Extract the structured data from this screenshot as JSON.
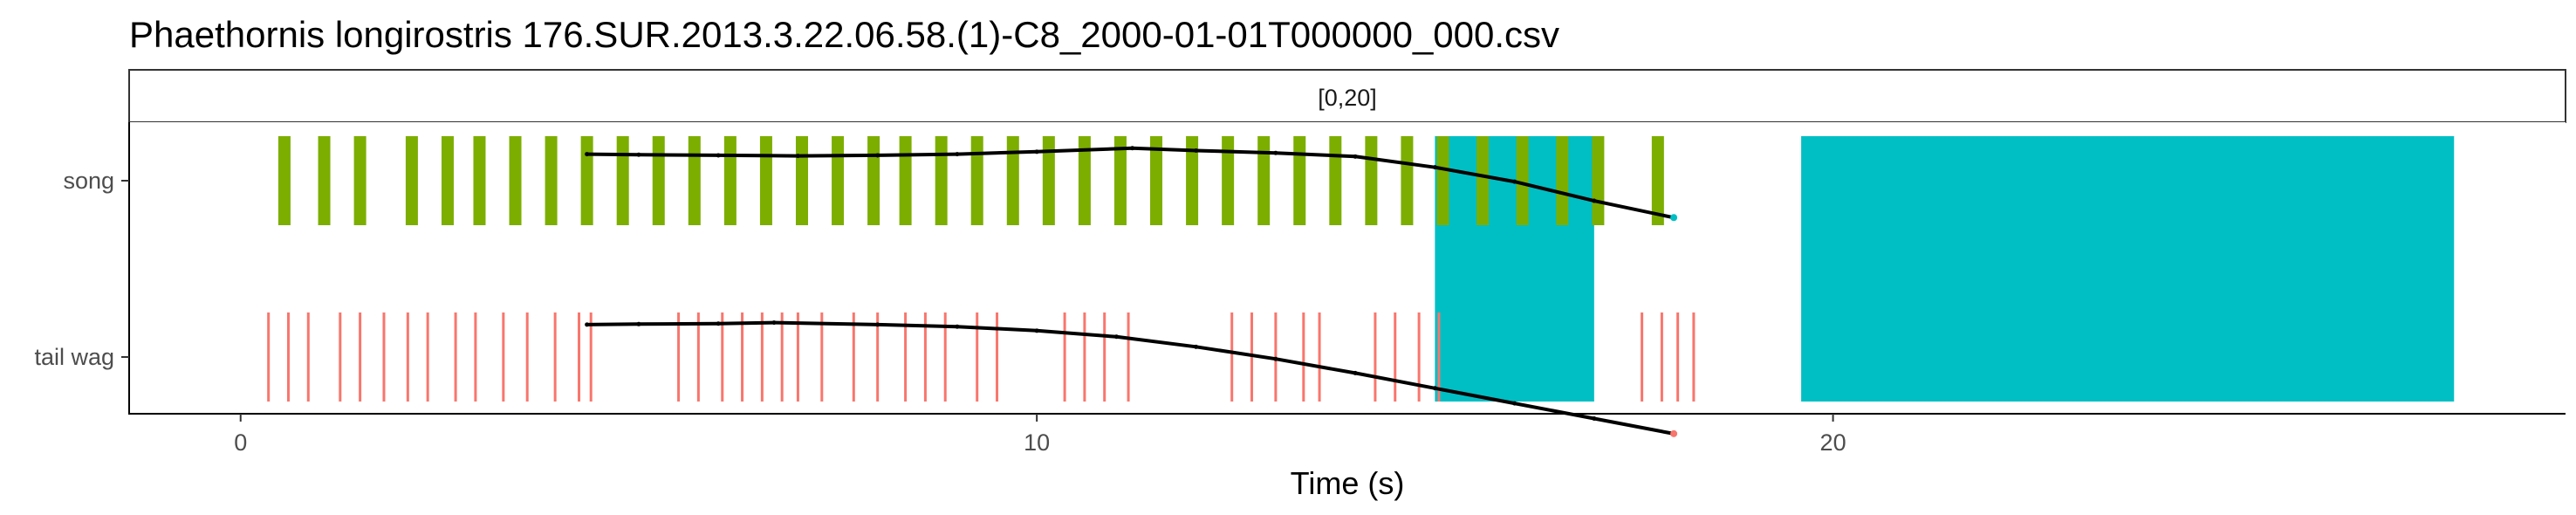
{
  "chart_data": {
    "type": "timeline",
    "title": "Phaethornis longirostris   176.SUR.2013.3.22.06.58.(1)-C8_2000-01-01T000000_000.csv",
    "facet_label": "[0,20]",
    "xlabel": "Time (s)",
    "ylabel": "",
    "xlim": [
      -1.4,
      29.2
    ],
    "x_ticks": [
      0,
      10,
      20
    ],
    "x_tick_labels": [
      "0",
      "10",
      "20"
    ],
    "rows": [
      "song",
      "tail wag"
    ],
    "grid": false,
    "colors": {
      "song": "#7CAE00",
      "tail_wag": "#F8766D",
      "highlight": "#00BFC4",
      "line": "#000000"
    },
    "highlights": [
      {
        "start": 15.0,
        "end": 17.0
      },
      {
        "start": 19.6,
        "end": 27.8
      }
    ],
    "song_events": [
      0.55,
      1.05,
      1.5,
      2.15,
      2.6,
      3.0,
      3.45,
      3.9,
      4.35,
      4.8,
      5.25,
      5.7,
      6.15,
      6.6,
      7.05,
      7.5,
      7.95,
      8.35,
      8.8,
      9.25,
      9.7,
      10.15,
      10.6,
      11.05,
      11.5,
      11.95,
      12.4,
      12.85,
      13.3,
      13.75,
      14.2,
      14.65,
      15.1,
      15.6,
      16.1,
      16.6,
      17.05,
      17.8
    ],
    "tail_wag_events": [
      0.35,
      0.6,
      0.85,
      1.25,
      1.5,
      1.8,
      2.1,
      2.35,
      2.7,
      2.95,
      3.3,
      3.6,
      3.95,
      4.25,
      4.4,
      5.5,
      5.75,
      6.05,
      6.3,
      6.55,
      6.8,
      7.0,
      7.3,
      7.7,
      8.0,
      8.35,
      8.6,
      8.85,
      9.25,
      9.5,
      10.35,
      10.6,
      10.85,
      11.15,
      12.45,
      12.7,
      13.0,
      13.35,
      13.55,
      14.25,
      14.5,
      14.8,
      15.05,
      17.6,
      17.85,
      18.05,
      18.25
    ],
    "song_line": {
      "x": [
        4.35,
        5.0,
        6.0,
        7.0,
        8.0,
        9.0,
        10.0,
        11.2,
        12.0,
        13.0,
        14.0,
        15.0,
        16.0,
        17.0,
        18.0
      ],
      "y": [
        0.5,
        0.45,
        0.4,
        0.35,
        0.4,
        0.5,
        0.7,
        1.0,
        0.8,
        0.6,
        0.3,
        -0.6,
        -1.8,
        -3.4,
        -4.8
      ]
    },
    "tail_line": {
      "x": [
        4.35,
        5.0,
        6.0,
        6.7,
        8.0,
        9.0,
        10.0,
        11.0,
        12.0,
        13.0,
        14.0,
        15.0,
        16.0,
        17.0,
        18.0
      ],
      "y": [
        0.8,
        0.85,
        0.9,
        1.0,
        0.8,
        0.6,
        0.2,
        -0.4,
        -1.4,
        -2.6,
        -4.0,
        -5.5,
        -7.0,
        -8.5,
        -10.0
      ]
    },
    "pseries_y_range": [
      -12.0,
      2.0
    ]
  }
}
